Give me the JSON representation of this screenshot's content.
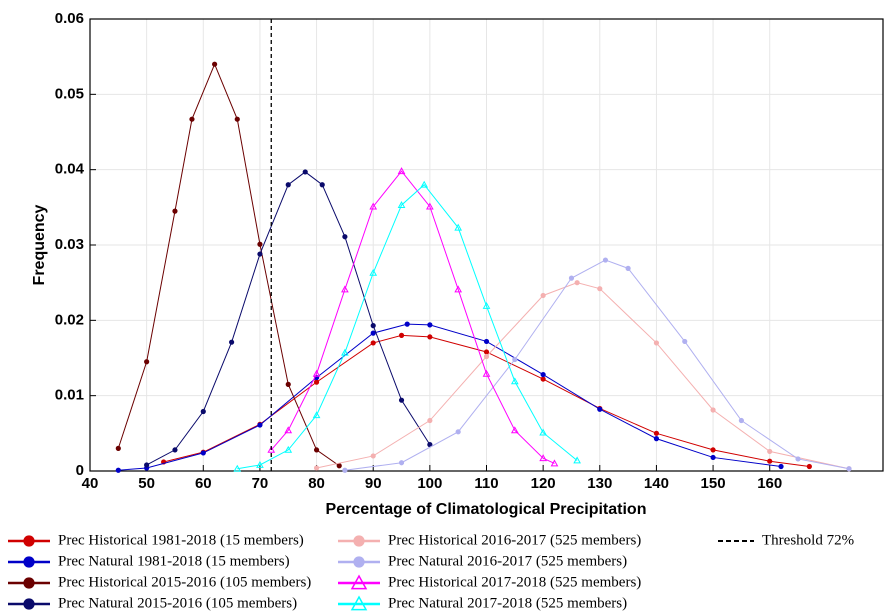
{
  "chart_data": {
    "type": "line",
    "x_label": "Percentage of Climatological Precipitation",
    "y_label": "Frequency",
    "xlim": [
      40,
      180
    ],
    "ylim": [
      0,
      0.06
    ],
    "xticks": [
      40,
      50,
      60,
      70,
      80,
      90,
      100,
      110,
      120,
      130,
      140,
      150,
      160
    ],
    "yticks": [
      0,
      0.01,
      0.02,
      0.03,
      0.04,
      0.05,
      0.06
    ],
    "grid": true,
    "legend": "bottom",
    "threshold": {
      "label": "Threshold 72%",
      "x": 72,
      "color": "#000000"
    },
    "series": [
      {
        "name": "Prec Historical 1981-2018 (15 members)",
        "color": "#d00000",
        "marker": "o",
        "x": [
          53,
          60,
          70,
          80,
          90,
          95,
          100,
          110,
          120,
          130,
          140,
          150,
          160,
          167
        ],
        "values": [
          0.0012,
          0.0025,
          0.0062,
          0.0118,
          0.017,
          0.018,
          0.0178,
          0.0158,
          0.0122,
          0.0083,
          0.005,
          0.0028,
          0.0013,
          0.0006
        ]
      },
      {
        "name": "Prec Natural 1981-2018 (15 members)",
        "color": "#0000c8",
        "marker": "o",
        "x": [
          45,
          50,
          60,
          70,
          80,
          90,
          96,
          100,
          110,
          120,
          130,
          140,
          150,
          162
        ],
        "values": [
          0.0001,
          0.0004,
          0.0024,
          0.0061,
          0.0124,
          0.0183,
          0.0195,
          0.0194,
          0.0172,
          0.0128,
          0.0082,
          0.0043,
          0.0018,
          0.0006
        ]
      },
      {
        "name": "Prec Historical 2015-2016 (105 members)",
        "color": "#6b0000",
        "marker": "o",
        "x": [
          45,
          50,
          55,
          58,
          62,
          66,
          70,
          75,
          80,
          84
        ],
        "values": [
          0.003,
          0.0145,
          0.0345,
          0.0467,
          0.054,
          0.0467,
          0.0301,
          0.0115,
          0.0028,
          0.0007
        ]
      },
      {
        "name": "Prec Natural 2015-2016 (105 members)",
        "color": "#0a0a6b",
        "marker": "o",
        "x": [
          50,
          55,
          60,
          65,
          70,
          75,
          78,
          81,
          85,
          90,
          95,
          100
        ],
        "values": [
          0.0008,
          0.0028,
          0.0079,
          0.0171,
          0.0288,
          0.038,
          0.0397,
          0.038,
          0.0311,
          0.0193,
          0.0094,
          0.0035
        ]
      },
      {
        "name": "Prec Historical 2016-2017 (525 members)",
        "color": "#f4b0b0",
        "marker": "*",
        "x": [
          80,
          90,
          100,
          110,
          120,
          126,
          130,
          140,
          150,
          160,
          174
        ],
        "values": [
          0.0004,
          0.002,
          0.0067,
          0.0152,
          0.0233,
          0.025,
          0.0242,
          0.017,
          0.0081,
          0.0026,
          0.0003
        ]
      },
      {
        "name": "Prec Natural 2016-2017 (525 members)",
        "color": "#b0b0f0",
        "marker": "*",
        "x": [
          85,
          95,
          105,
          115,
          125,
          131,
          135,
          145,
          155,
          165,
          174
        ],
        "values": [
          0.0001,
          0.0011,
          0.0052,
          0.0148,
          0.0256,
          0.028,
          0.0269,
          0.0172,
          0.0067,
          0.0016,
          0.0003
        ]
      },
      {
        "name": "Prec Historical 2017-2018 (525 members)",
        "color": "#ff00ff",
        "marker": "^",
        "x": [
          72,
          75,
          80,
          85,
          90,
          95,
          100,
          105,
          110,
          115,
          120,
          122
        ],
        "values": [
          0.0028,
          0.0054,
          0.0129,
          0.0241,
          0.0351,
          0.0398,
          0.0351,
          0.0241,
          0.0129,
          0.0054,
          0.0017,
          0.001
        ]
      },
      {
        "name": "Prec Natural 2017-2018 (525 members)",
        "color": "#00ffff",
        "marker": "^",
        "x": [
          66,
          70,
          75,
          80,
          85,
          90,
          95,
          99,
          105,
          110,
          115,
          120,
          126
        ],
        "values": [
          0.0003,
          0.0008,
          0.0028,
          0.0074,
          0.0157,
          0.0263,
          0.0353,
          0.038,
          0.0323,
          0.0219,
          0.0119,
          0.0051,
          0.0014
        ]
      }
    ]
  }
}
